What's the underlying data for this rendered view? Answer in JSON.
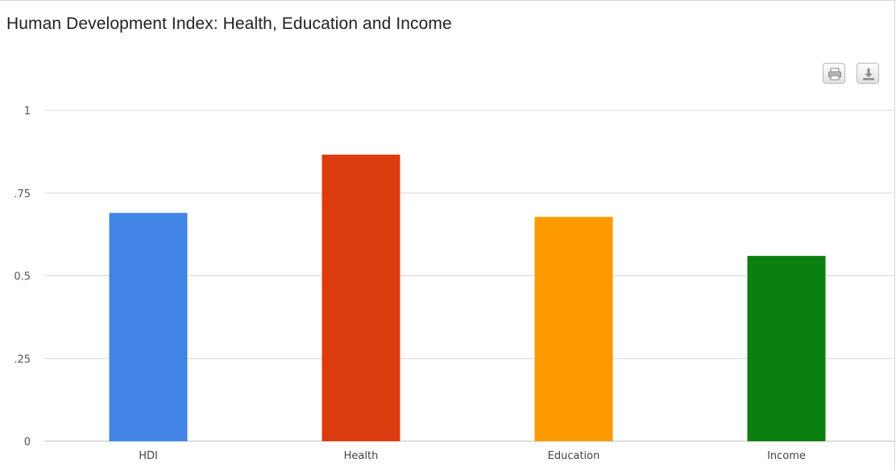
{
  "header": {
    "title": "Human Development Index: Health, Education and Income"
  },
  "toolbar": {
    "print_icon": "print-icon",
    "download_icon": "download-icon"
  },
  "chart_data": {
    "type": "bar",
    "title": "Human Development Index: Health, Education and Income",
    "xlabel": "",
    "ylabel": "",
    "categories": [
      "HDI",
      "Health",
      "Education",
      "Income"
    ],
    "values": [
      0.69,
      0.866,
      0.678,
      0.56
    ],
    "colors": [
      "#4184e5",
      "#dc3b10",
      "#fd9a00",
      "#0b7f0f"
    ],
    "ylim": [
      0,
      1
    ],
    "yticks": [
      0,
      0.25,
      0.5,
      0.75,
      1
    ],
    "ytick_labels": [
      "0",
      ".25",
      "0.5",
      ".75",
      "1"
    ],
    "grid": true,
    "legend": "none"
  }
}
